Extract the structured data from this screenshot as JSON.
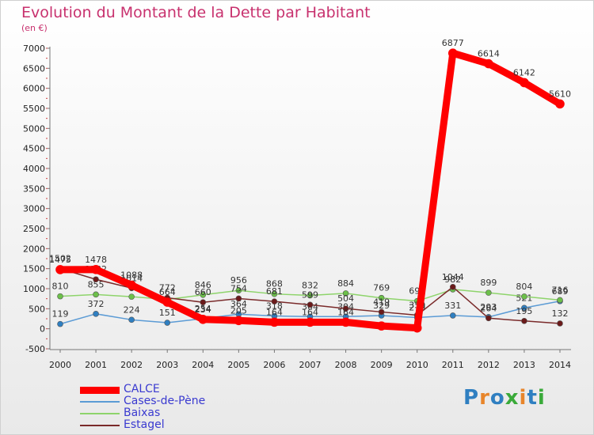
{
  "title": "Evolution du Montant de la Dette par Habitant",
  "subtitle": "(en €)",
  "logo": {
    "text": "Proxiti",
    "colors": [
      "#2f7fc1",
      "#e8852a",
      "#2f7fc1",
      "#3aaa3a",
      "#e8852a",
      "#2f7fc1",
      "#3aaa3a"
    ]
  },
  "chart_data": {
    "type": "line",
    "x": [
      2000,
      2001,
      2002,
      2003,
      2004,
      2005,
      2006,
      2007,
      2008,
      2009,
      2010,
      2011,
      2012,
      2013,
      2014
    ],
    "ylim": [
      -500,
      7000
    ],
    "yticks": [
      -500,
      0,
      500,
      1000,
      1500,
      2000,
      2500,
      3000,
      3500,
      4000,
      4500,
      5000,
      5500,
      6000,
      6500,
      7000
    ],
    "grid": false,
    "legend": "bottom-left",
    "series": [
      {
        "name": "Cases-de-Pène",
        "color": "#5b9bd5",
        "marker": "#2f7fc1",
        "width": 1.5,
        "values": [
          119,
          372,
          224,
          151,
          254,
          364,
          318,
          304,
          304,
          329,
          279,
          331,
          293,
          521,
          689
        ],
        "labels": [
          "119",
          "372",
          "224",
          "151",
          "254",
          "364",
          "318",
          "304",
          "304",
          "329",
          "279",
          "331",
          "293",
          "521",
          "689"
        ]
      },
      {
        "name": "Baixas",
        "color": "#8ed46b",
        "marker": "#6cc04a",
        "width": 1.5,
        "values": [
          810,
          855,
          800,
          730,
          846,
          956,
          868,
          832,
          884,
          769,
          691,
          982,
          899,
          804,
          716
        ],
        "labels": [
          "810",
          "855",
          "",
          "",
          "846",
          "956",
          "868",
          "832",
          "884",
          "769",
          "691",
          "982",
          "899",
          "804",
          "716"
        ]
      },
      {
        "name": "Estagel",
        "color": "#7a2a2a",
        "marker": "#6b1a1a",
        "width": 1.5,
        "values": [
          1502,
          1232,
          1014,
          772,
          660,
          754,
          681,
          599,
          504,
          419,
          339,
          1044,
          264,
          195,
          132
        ],
        "labels": [
          "1502",
          "1232",
          "1014",
          "772",
          "660",
          "754",
          "681",
          "599",
          "504",
          "419",
          "339",
          "1044",
          "264",
          "195",
          "132"
        ]
      },
      {
        "name": "CALCE",
        "color": "#ff0000",
        "marker": "#ff0000",
        "width": 9,
        "values": [
          1475,
          1478,
          1088,
          664,
          234,
          205,
          164,
          164,
          164,
          70,
          20,
          6877,
          6614,
          6142,
          5610
        ],
        "labels": [
          "1475",
          "1478",
          "1088",
          "664",
          "234",
          "205",
          "164",
          "164",
          "164",
          "",
          "",
          "6877",
          "6614",
          "6142",
          "5610"
        ]
      }
    ],
    "legend_entries": [
      "CALCE",
      "Cases-de-Pène",
      "Baixas",
      "Estagel"
    ]
  }
}
